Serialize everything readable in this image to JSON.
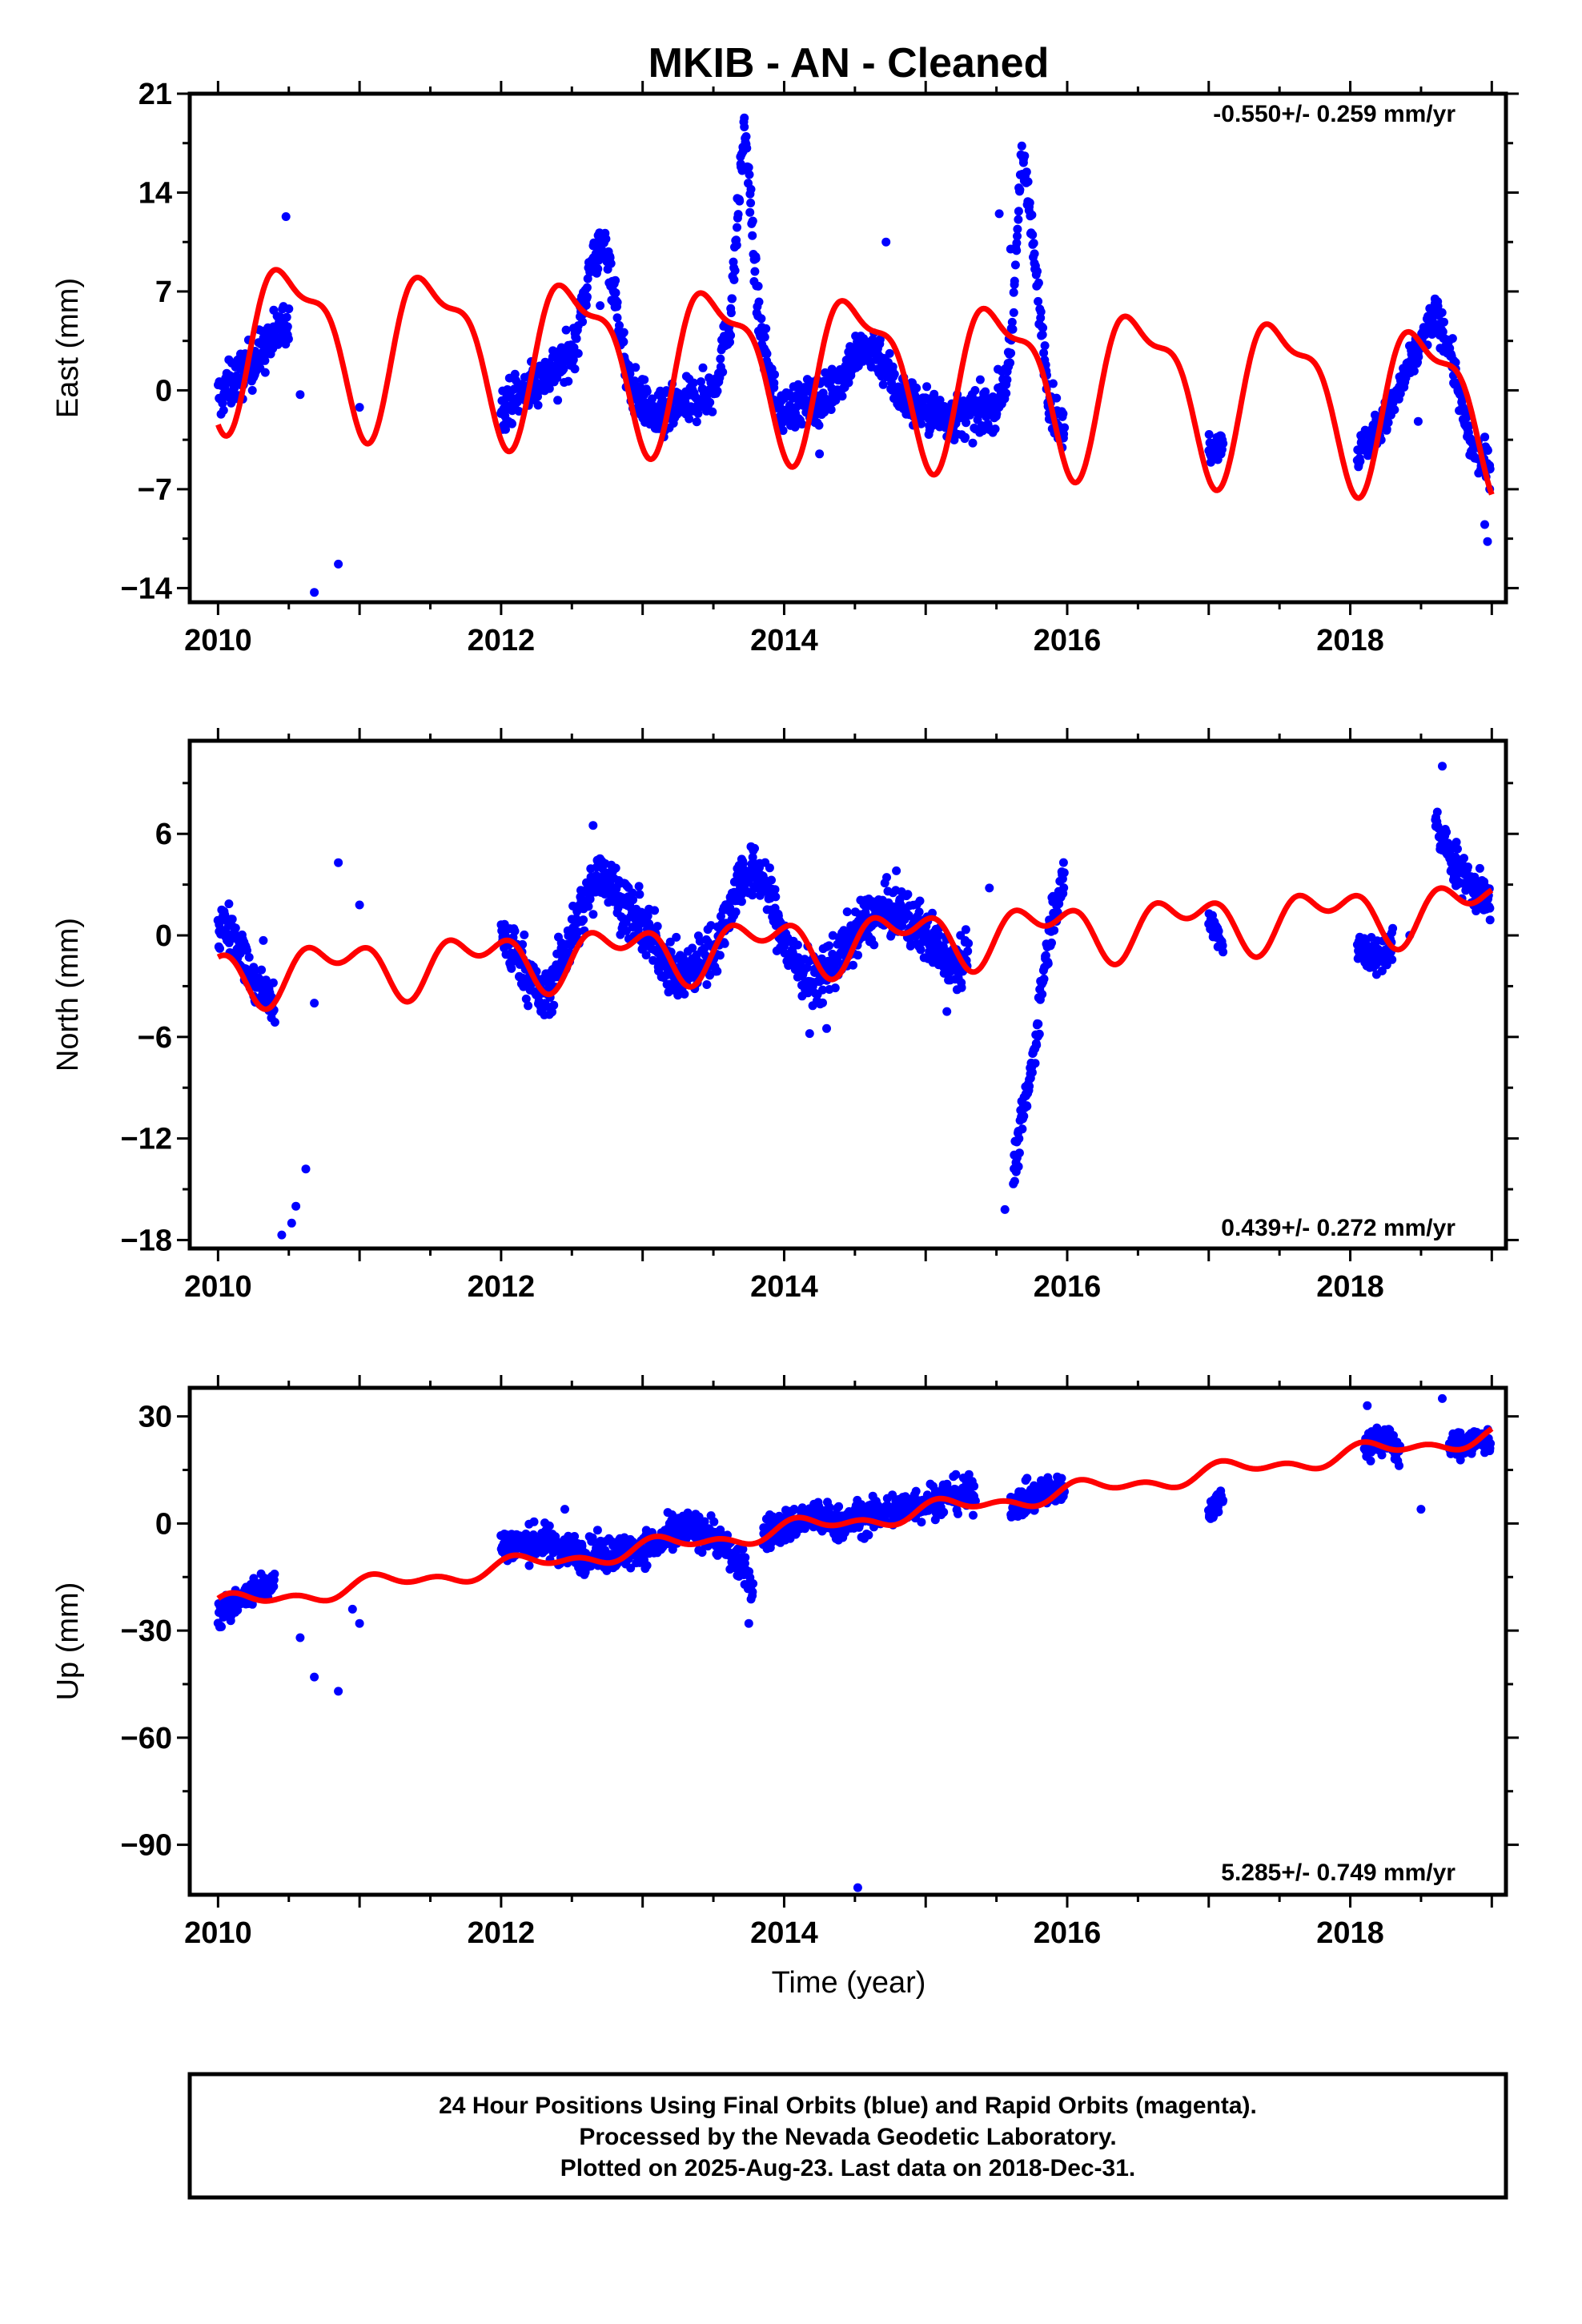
{
  "title": "MKIB  - AN - Cleaned",
  "xlabel": "Time (year)",
  "footer": [
    "24 Hour Positions Using Final Orbits (blue) and Rapid Orbits (magenta).",
    "Processed by the Nevada Geodetic Laboratory.",
    "Plotted on 2025-Aug-23. Last data on 2018-Dec-31."
  ],
  "colors": {
    "data": "#0000ff",
    "model": "#ff0000",
    "frame": "#000000"
  },
  "chart_data": [
    {
      "type": "scatter",
      "ylabel": "East (mm)",
      "rate": "-0.550+/- 0.259 mm/yr",
      "xlim": [
        2009.8,
        2019.1
      ],
      "ylim": [
        -15,
        21
      ],
      "yticks": [
        21,
        14,
        7,
        0,
        -7,
        -14
      ],
      "xticks": [
        2010,
        2012,
        2014,
        2016,
        2018
      ],
      "segments": [
        {
          "x": [
            2010.0,
            2010.25,
            2010.5
          ],
          "y": [
            -0.5,
            2.0,
            5.0
          ],
          "spread": 1.6
        },
        {
          "x": [
            2012.0,
            2012.3,
            2012.5,
            2012.65,
            2012.75,
            2012.9,
            2013.1,
            2013.3,
            2013.5,
            2013.62,
            2013.72,
            2013.82,
            2013.95,
            2014.1,
            2014.3,
            2014.5,
            2014.65,
            2014.8,
            2015.0,
            2015.2,
            2015.4,
            2015.5,
            2015.6,
            2015.68,
            2015.78,
            2015.88,
            2015.98
          ],
          "y": [
            -1.2,
            1.0,
            2.5,
            9.5,
            10.0,
            0.5,
            -2.0,
            -1.0,
            0.0,
            5.0,
            19.0,
            5.0,
            -1.5,
            -1.0,
            -0.5,
            2.5,
            3.0,
            0.0,
            -1.5,
            -2.0,
            -1.5,
            -1.0,
            2.0,
            17.5,
            8.0,
            -1.0,
            -3.0
          ],
          "spread": 1.5
        },
        {
          "x": [
            2017.0,
            2017.1
          ],
          "y": [
            -4.0,
            -3.5
          ],
          "spread": 1.0
        },
        {
          "x": [
            2018.05,
            2018.25,
            2018.6,
            2018.7,
            2018.85,
            2018.99
          ],
          "y": [
            -4.5,
            -2.0,
            5.5,
            3.0,
            -4.0,
            -5.5
          ],
          "spread": 1.2
        }
      ],
      "outliers": [
        {
          "x": 2010.58,
          "y": -0.3
        },
        {
          "x": 2010.68,
          "y": -14.3
        },
        {
          "x": 2010.85,
          "y": -12.3
        },
        {
          "x": 2011.0,
          "y": -1.2
        },
        {
          "x": 2010.48,
          "y": 12.3
        },
        {
          "x": 2014.25,
          "y": -4.5
        },
        {
          "x": 2014.72,
          "y": 10.5
        },
        {
          "x": 2015.6,
          "y": 10.0
        },
        {
          "x": 2015.52,
          "y": 12.5
        },
        {
          "x": 2018.95,
          "y": -9.5
        },
        {
          "x": 2018.97,
          "y": -10.7
        },
        {
          "x": 2018.48,
          "y": -2.2
        },
        {
          "x": 2012.4,
          "y": -0.7
        },
        {
          "x": 2012.7,
          "y": 6.0
        },
        {
          "x": 2013.15,
          "y": -3.3
        }
      ],
      "model": {
        "offset": 1.5,
        "trend": -0.55,
        "annual": [
          -1.0,
          -5.2
        ],
        "semiannual": [
          -1.6,
          -1.2
        ],
        "anchor": 2014.5
      }
    },
    {
      "type": "scatter",
      "ylabel": "North (mm)",
      "rate": "0.439+/- 0.272 mm/yr",
      "xlim": [
        2009.8,
        2019.1
      ],
      "ylim": [
        -18.5,
        11.5
      ],
      "yticks": [
        6,
        0,
        -6,
        -12,
        -18
      ],
      "xticks": [
        2010,
        2012,
        2014,
        2016,
        2018
      ],
      "segments": [
        {
          "x": [
            2010.0,
            2010.1,
            2010.25,
            2010.4
          ],
          "y": [
            0.5,
            0.5,
            -3.0,
            -4.0
          ],
          "spread": 1.3
        },
        {
          "x": [
            2012.0,
            2012.15,
            2012.3,
            2012.5,
            2012.7,
            2012.85,
            2013.0,
            2013.25,
            2013.5,
            2013.7,
            2013.85,
            2014.0,
            2014.2,
            2014.4,
            2014.6,
            2014.8,
            2015.0,
            2015.2,
            2015.3
          ],
          "y": [
            0.0,
            -1.5,
            -4.0,
            0.0,
            4.0,
            2.0,
            0.5,
            -2.5,
            -1.0,
            3.5,
            3.5,
            -0.5,
            -3.0,
            -1.0,
            1.0,
            1.5,
            0.0,
            -1.5,
            -1.0
          ],
          "spread": 1.5
        },
        {
          "x": [
            2015.62,
            2015.68,
            2015.75,
            2015.82,
            2015.9,
            2015.98
          ],
          "y": [
            -14.0,
            -11.0,
            -8.0,
            -3.0,
            1.5,
            3.0
          ],
          "spread": 1.2
        },
        {
          "x": [
            2017.0,
            2017.1
          ],
          "y": [
            1.0,
            -0.5
          ],
          "spread": 0.8
        },
        {
          "x": [
            2018.05,
            2018.2,
            2018.3
          ],
          "y": [
            -0.5,
            -1.5,
            -0.5
          ],
          "spread": 1.0
        },
        {
          "x": [
            2018.6,
            2018.75,
            2018.9,
            2018.99
          ],
          "y": [
            6.5,
            4.0,
            2.5,
            2.0
          ],
          "spread": 1.2
        }
      ],
      "outliers": [
        {
          "x": 2010.45,
          "y": -17.7
        },
        {
          "x": 2010.52,
          "y": -17.0
        },
        {
          "x": 2010.55,
          "y": -16.0
        },
        {
          "x": 2010.62,
          "y": -13.8
        },
        {
          "x": 2010.85,
          "y": 4.3
        },
        {
          "x": 2011.0,
          "y": 1.8
        },
        {
          "x": 2010.68,
          "y": -4.0
        },
        {
          "x": 2010.32,
          "y": -0.3
        },
        {
          "x": 2014.18,
          "y": -5.8
        },
        {
          "x": 2014.3,
          "y": -5.5
        },
        {
          "x": 2015.15,
          "y": -4.5
        },
        {
          "x": 2015.45,
          "y": 2.8
        },
        {
          "x": 2015.56,
          "y": -16.2
        },
        {
          "x": 2018.65,
          "y": 10.0
        },
        {
          "x": 2018.42,
          "y": 0.0
        },
        {
          "x": 2013.7,
          "y": 4.5
        },
        {
          "x": 2012.65,
          "y": 6.5
        }
      ],
      "model": {
        "offset": -0.3,
        "trend": 0.44,
        "annual": [
          -1.1,
          0.6
        ],
        "semiannual": [
          0.9,
          0.4
        ],
        "anchor": 2014.5
      }
    },
    {
      "type": "scatter",
      "ylabel": "Up (mm)",
      "rate": "5.285+/- 0.749 mm/yr",
      "xlim": [
        2009.8,
        2019.1
      ],
      "ylim": [
        -104,
        38
      ],
      "yticks": [
        30,
        0,
        -30,
        -60,
        -90
      ],
      "xticks": [
        2010,
        2012,
        2014,
        2016,
        2018
      ],
      "segments": [
        {
          "x": [
            2010.0,
            2010.2,
            2010.4
          ],
          "y": [
            -26.0,
            -20.0,
            -16.0
          ],
          "spread": 3.5
        },
        {
          "x": [
            2012.0,
            2012.3,
            2012.6,
            2012.9,
            2013.1,
            2013.3,
            2013.5,
            2013.7,
            2013.78
          ],
          "y": [
            -6.0,
            -5.0,
            -9.0,
            -8.0,
            -6.0,
            -1.0,
            -3.0,
            -12.0,
            -18.0
          ],
          "spread": 4.5
        },
        {
          "x": [
            2013.85,
            2014.0,
            2014.2,
            2014.4,
            2014.6,
            2014.8,
            2015.0,
            2015.2,
            2015.35
          ],
          "y": [
            -3.0,
            -1.0,
            2.0,
            0.0,
            2.0,
            4.0,
            6.0,
            8.0,
            8.0
          ],
          "spread": 4.5
        },
        {
          "x": [
            2015.6,
            2015.8,
            2015.98
          ],
          "y": [
            5.0,
            8.0,
            10.0
          ],
          "spread": 4.0
        },
        {
          "x": [
            2017.0,
            2017.1
          ],
          "y": [
            3.0,
            8.0
          ],
          "spread": 3.0
        },
        {
          "x": [
            2018.1,
            2018.25,
            2018.35
          ],
          "y": [
            22.0,
            24.0,
            20.0
          ],
          "spread": 4.0
        },
        {
          "x": [
            2018.7,
            2018.85,
            2018.99
          ],
          "y": [
            21.0,
            23.0,
            23.0
          ],
          "spread": 3.5
        }
      ],
      "outliers": [
        {
          "x": 2014.52,
          "y": -102.0
        },
        {
          "x": 2010.68,
          "y": -43.0
        },
        {
          "x": 2010.85,
          "y": -47.0
        },
        {
          "x": 2010.58,
          "y": -32.0
        },
        {
          "x": 2011.0,
          "y": -28.0
        },
        {
          "x": 2010.95,
          "y": -24.0
        },
        {
          "x": 2013.75,
          "y": -28.0
        },
        {
          "x": 2018.5,
          "y": 4.0
        },
        {
          "x": 2018.65,
          "y": 35.0
        },
        {
          "x": 2012.45,
          "y": 4.0
        },
        {
          "x": 2018.12,
          "y": 33.0
        }
      ],
      "model": {
        "offset": 0.0,
        "trend": 5.285,
        "annual": [
          1.6,
          1.0
        ],
        "semiannual": [
          1.0,
          1.0
        ],
        "anchor": 2014.35
      }
    }
  ]
}
